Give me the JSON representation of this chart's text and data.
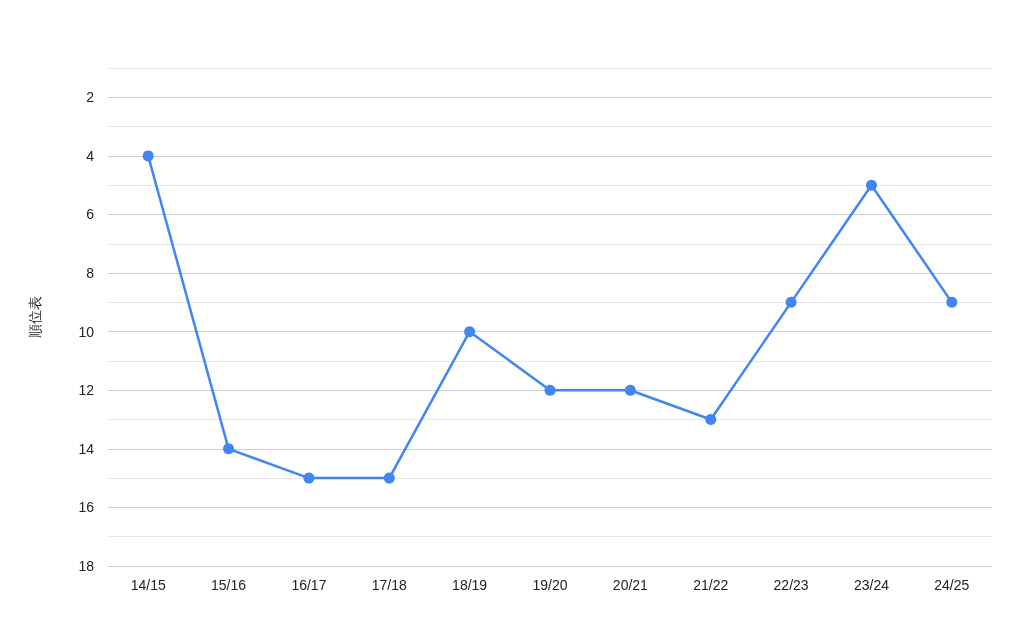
{
  "chart_data": {
    "type": "line",
    "ylabel": "順位表",
    "categories": [
      "14/15",
      "15/16",
      "16/17",
      "17/18",
      "18/19",
      "19/20",
      "20/21",
      "21/22",
      "22/23",
      "23/24",
      "24/25"
    ],
    "series": [
      {
        "color": "#4285f4",
        "values": [
          4,
          14,
          15,
          15,
          10,
          12,
          12,
          13,
          9,
          5,
          9
        ]
      }
    ],
    "ylim": [
      18,
      1
    ],
    "yticks": [
      {
        "value": 1,
        "label": null
      },
      2,
      {
        "value": 3,
        "label": null
      },
      4,
      {
        "value": 5,
        "label": null
      },
      6,
      {
        "value": 7,
        "label": null
      },
      8,
      {
        "value": 9,
        "label": null
      },
      10,
      {
        "value": 11,
        "label": null
      },
      12,
      {
        "value": 13,
        "label": null
      },
      14,
      {
        "value": 15,
        "label": null
      },
      16,
      {
        "value": 17,
        "label": null
      },
      18
    ],
    "grid": true,
    "marker": "circle",
    "line_style": "solid"
  }
}
